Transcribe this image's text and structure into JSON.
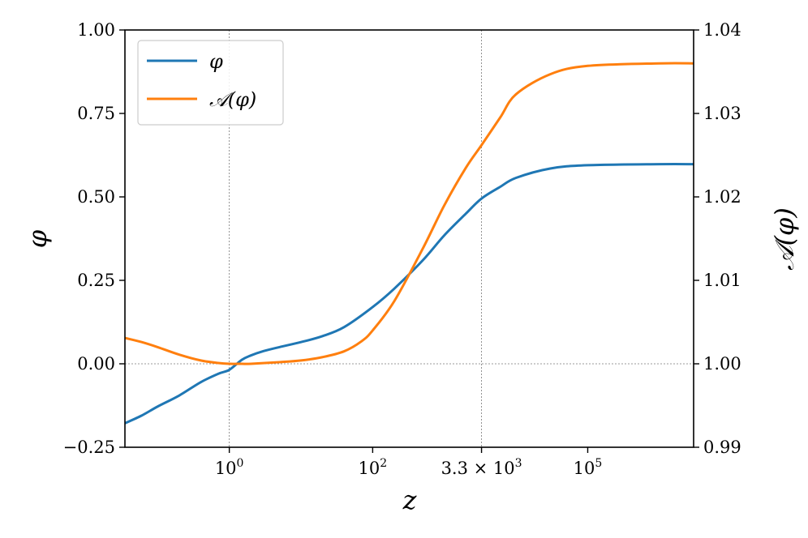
{
  "chart_data": {
    "type": "line",
    "x_scale": "log",
    "x_label": "z",
    "y_left_label": "φ",
    "y_right_label": "𝒜(φ)",
    "xlim": [
      0.035,
      3000000
    ],
    "ylim_left": [
      -0.25,
      1.0
    ],
    "ylim_right": [
      0.99,
      1.04
    ],
    "grid": "reference lines at z = 1 and z = 3.3×10³ and φ = 0",
    "legend_placement": "top-left",
    "x_ticks": [
      {
        "value": 1,
        "label": "10",
        "exp": "0"
      },
      {
        "value": 100,
        "label": "10",
        "exp": "2"
      },
      {
        "value": 3300,
        "label": "3.3 × 10",
        "exp": "3"
      },
      {
        "value": 100000,
        "label": "10",
        "exp": "5"
      }
    ],
    "y_left_ticks": [
      "1.00",
      "0.75",
      "0.50",
      "0.25",
      "0.00",
      "−0.25"
    ],
    "y_left_tick_values": [
      1.0,
      0.75,
      0.5,
      0.25,
      0.0,
      -0.25
    ],
    "y_right_ticks": [
      "1.04",
      "1.03",
      "1.02",
      "1.01",
      "1.00",
      "0.99"
    ],
    "y_right_tick_values": [
      1.04,
      1.03,
      1.02,
      1.01,
      1.0,
      0.99
    ],
    "series": [
      {
        "name": "φ",
        "axis": "left",
        "color": "#1f77b4",
        "points": [
          [
            0.035,
            -0.178
          ],
          [
            0.06,
            -0.155
          ],
          [
            0.1,
            -0.128
          ],
          [
            0.2,
            -0.095
          ],
          [
            0.4,
            -0.055
          ],
          [
            0.7,
            -0.03
          ],
          [
            1.0,
            -0.018
          ],
          [
            1.5,
            0.012
          ],
          [
            2,
            0.025
          ],
          [
            3,
            0.038
          ],
          [
            5,
            0.05
          ],
          [
            10,
            0.065
          ],
          [
            20,
            0.083
          ],
          [
            40,
            0.11
          ],
          [
            100,
            0.17
          ],
          [
            200,
            0.225
          ],
          [
            500,
            0.31
          ],
          [
            1000,
            0.385
          ],
          [
            2000,
            0.45
          ],
          [
            3300,
            0.495
          ],
          [
            6000,
            0.53
          ],
          [
            10000,
            0.557
          ],
          [
            30000,
            0.585
          ],
          [
            100000,
            0.595
          ],
          [
            1000000,
            0.598
          ],
          [
            3000000,
            0.598
          ]
        ]
      },
      {
        "name": "𝒜(φ)",
        "axis": "right",
        "color": "#ff7f0e",
        "points": [
          [
            0.035,
            1.0031
          ],
          [
            0.06,
            1.0026
          ],
          [
            0.1,
            1.002
          ],
          [
            0.2,
            1.0011
          ],
          [
            0.4,
            1.0004
          ],
          [
            0.7,
            1.0001
          ],
          [
            1.0,
            1.0
          ],
          [
            1.5,
            1.0
          ],
          [
            2,
            1.0
          ],
          [
            5,
            1.0002
          ],
          [
            10,
            1.0004
          ],
          [
            20,
            1.0008
          ],
          [
            40,
            1.0015
          ],
          [
            70,
            1.0027
          ],
          [
            100,
            1.004
          ],
          [
            200,
            1.0075
          ],
          [
            500,
            1.0138
          ],
          [
            1000,
            1.019
          ],
          [
            2000,
            1.0235
          ],
          [
            3300,
            1.0262
          ],
          [
            6000,
            1.0295
          ],
          [
            10000,
            1.0323
          ],
          [
            30000,
            1.0347
          ],
          [
            100000,
            1.0357
          ],
          [
            1000000,
            1.036
          ],
          [
            3000000,
            1.036
          ]
        ]
      }
    ]
  }
}
